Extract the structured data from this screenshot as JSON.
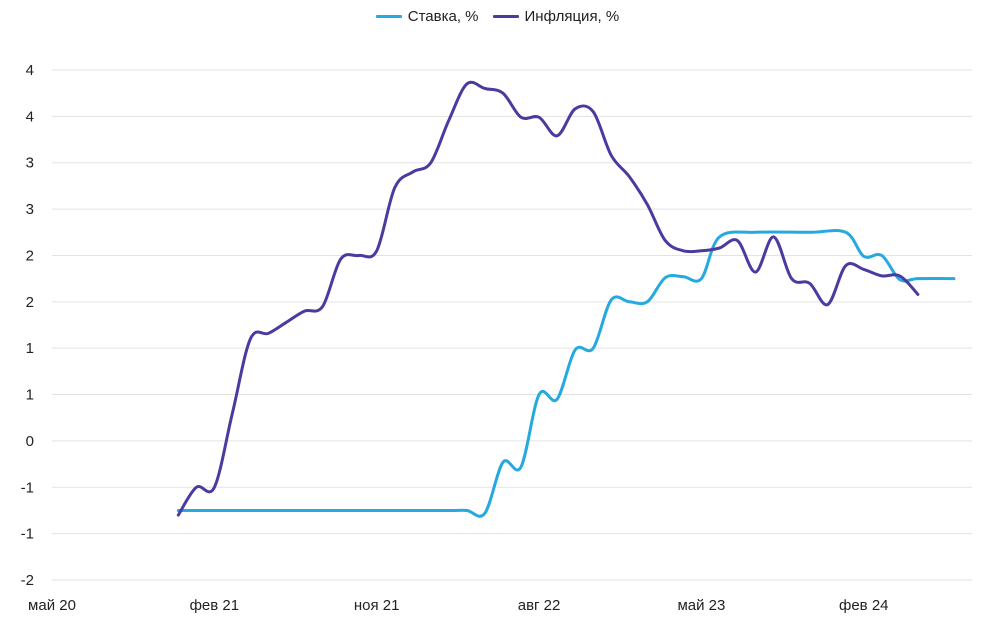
{
  "chart_data": {
    "type": "line",
    "title": "",
    "xlabel": "",
    "ylabel": "",
    "x_ticks": [
      "май 20",
      "фев 21",
      "ноя 21",
      "авг 22",
      "май 23",
      "фев 24"
    ],
    "x_range": [
      "2020-05",
      "2024-08"
    ],
    "y_tick_labels": [
      "-2",
      "-1",
      "-1",
      "0",
      "1",
      "1",
      "2",
      "2",
      "3",
      "3",
      "4",
      "4"
    ],
    "y_grid_values": [
      -2.0,
      -1.5,
      -1.0,
      -0.5,
      0.0,
      0.5,
      1.0,
      1.5,
      2.0,
      2.5,
      3.0,
      3.5
    ],
    "ylim": [
      -2.0,
      3.5
    ],
    "grid": "horizontal",
    "legend_position": "top-center",
    "series": [
      {
        "name": "Ставка, %",
        "color": "#25a9df",
        "points": [
          [
            "2020-12",
            -1.25
          ],
          [
            "2021-03",
            -1.25
          ],
          [
            "2021-06",
            -1.25
          ],
          [
            "2021-09",
            -1.25
          ],
          [
            "2021-12",
            -1.25
          ],
          [
            "2022-03",
            -1.25
          ],
          [
            "2022-04",
            -1.25
          ],
          [
            "2022-05",
            -1.28
          ],
          [
            "2022-06",
            -0.73
          ],
          [
            "2022-07",
            -0.78
          ],
          [
            "2022-08",
            0.0
          ],
          [
            "2022-09",
            -0.05
          ],
          [
            "2022-10",
            0.48
          ],
          [
            "2022-11",
            0.5
          ],
          [
            "2022-12",
            1.02
          ],
          [
            "2023-01",
            1.0
          ],
          [
            "2023-02",
            1.0
          ],
          [
            "2023-03",
            1.26
          ],
          [
            "2023-04",
            1.27
          ],
          [
            "2023-05",
            1.25
          ],
          [
            "2023-06",
            1.7
          ],
          [
            "2023-08",
            1.75
          ],
          [
            "2023-11",
            1.75
          ],
          [
            "2024-01",
            1.75
          ],
          [
            "2024-02",
            1.49
          ],
          [
            "2024-03",
            1.5
          ],
          [
            "2024-04",
            1.24
          ],
          [
            "2024-05",
            1.25
          ],
          [
            "2024-07",
            1.25
          ]
        ]
      },
      {
        "name": "Инфляция, %",
        "color": "#4b3a9f",
        "points": [
          [
            "2020-12",
            -1.3
          ],
          [
            "2021-01",
            -1.0
          ],
          [
            "2021-02",
            -1.0
          ],
          [
            "2021-03",
            -0.2
          ],
          [
            "2021-04",
            0.6
          ],
          [
            "2021-05",
            0.66
          ],
          [
            "2021-06",
            0.78
          ],
          [
            "2021-07",
            0.9
          ],
          [
            "2021-08",
            0.95
          ],
          [
            "2021-09",
            1.46
          ],
          [
            "2021-10",
            1.5
          ],
          [
            "2021-11",
            1.55
          ],
          [
            "2021-12",
            2.23
          ],
          [
            "2022-01",
            2.4
          ],
          [
            "2022-02",
            2.5
          ],
          [
            "2022-03",
            2.96
          ],
          [
            "2022-04",
            3.35
          ],
          [
            "2022-05",
            3.3
          ],
          [
            "2022-06",
            3.25
          ],
          [
            "2022-07",
            2.99
          ],
          [
            "2022-08",
            2.99
          ],
          [
            "2022-09",
            2.79
          ],
          [
            "2022-10",
            3.08
          ],
          [
            "2022-11",
            3.05
          ],
          [
            "2022-12",
            2.58
          ],
          [
            "2023-01",
            2.35
          ],
          [
            "2023-02",
            2.05
          ],
          [
            "2023-03",
            1.66
          ],
          [
            "2023-04",
            1.55
          ],
          [
            "2023-05",
            1.55
          ],
          [
            "2023-06",
            1.58
          ],
          [
            "2023-07",
            1.66
          ],
          [
            "2023-08",
            1.32
          ],
          [
            "2023-09",
            1.7
          ],
          [
            "2023-10",
            1.25
          ],
          [
            "2023-11",
            1.2
          ],
          [
            "2023-12",
            0.97
          ],
          [
            "2024-01",
            1.39
          ],
          [
            "2024-02",
            1.35
          ],
          [
            "2024-03",
            1.28
          ],
          [
            "2024-04",
            1.28
          ],
          [
            "2024-05",
            1.08
          ]
        ]
      }
    ]
  }
}
